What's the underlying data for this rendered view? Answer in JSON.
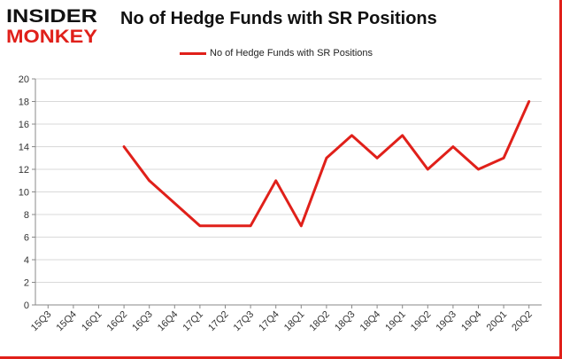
{
  "logo": {
    "line1": "INSIDER",
    "line2": "MONKEY"
  },
  "chart_data": {
    "type": "line",
    "title": "No of Hedge Funds with SR Positions",
    "categories": [
      "15Q3",
      "15Q4",
      "16Q1",
      "16Q2",
      "16Q3",
      "16Q4",
      "17Q1",
      "17Q2",
      "17Q3",
      "17Q4",
      "18Q1",
      "18Q2",
      "18Q3",
      "18Q4",
      "19Q1",
      "19Q2",
      "19Q3",
      "19Q4",
      "20Q1",
      "20Q2"
    ],
    "series": [
      {
        "name": "No of Hedge Funds with SR Positions",
        "values": [
          null,
          null,
          null,
          14,
          11,
          9,
          7,
          7,
          7,
          11,
          7,
          13,
          15,
          13,
          15,
          12,
          14,
          12,
          13,
          18
        ]
      }
    ],
    "y_ticks": [
      0,
      2,
      4,
      6,
      8,
      10,
      12,
      14,
      16,
      18,
      20
    ],
    "ylim": [
      0,
      20
    ],
    "grid": "horizontal",
    "legend_position": "top-center",
    "colors": {
      "line": "#e0201a",
      "grid": "#d9d9d9",
      "logo_red": "#e0201a"
    }
  }
}
